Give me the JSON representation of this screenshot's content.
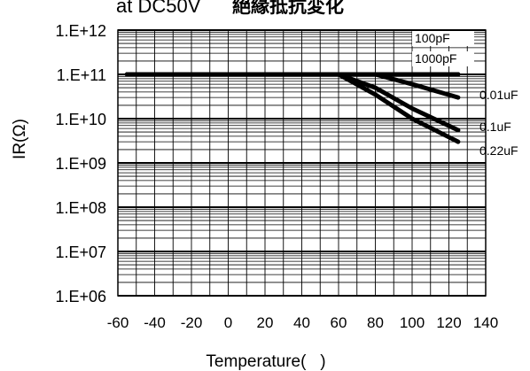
{
  "chart_data": {
    "type": "line",
    "title": "at DC50V",
    "subtitle": "絕緣抵抗変化",
    "xlabel": "Temperature(   )",
    "ylabel": "IR(Ω)",
    "xlim": [
      -60,
      140
    ],
    "ylim_log10": [
      6,
      12
    ],
    "x_ticks": [
      -60,
      -40,
      -20,
      0,
      20,
      40,
      60,
      80,
      100,
      120,
      140
    ],
    "x_tick_labels": [
      "-60",
      "-40",
      "-20",
      "0",
      "20",
      "40",
      "60",
      "80",
      "100",
      "120",
      "140"
    ],
    "y_tick_labels": [
      "1.E+12",
      "1.E+11",
      "1.E+10",
      "1.E+09",
      "1.E+08",
      "1.E+07",
      "1.E+06"
    ],
    "y_scale": "log",
    "grid": true,
    "series": [
      {
        "name": "100pF",
        "x": [
          -55,
          60,
          80,
          125
        ],
        "y": [
          100000000000.0,
          100000000000.0,
          100000000000.0,
          100000000000.0
        ]
      },
      {
        "name": "1000pF",
        "x": [
          -55,
          60,
          80,
          125
        ],
        "y": [
          100000000000.0,
          100000000000.0,
          100000000000.0,
          100000000000.0
        ]
      },
      {
        "name": "0.01uF",
        "x": [
          -55,
          60,
          80,
          100,
          125
        ],
        "y": [
          100000000000.0,
          100000000000.0,
          100000000000.0,
          60000000000.0,
          30000000000.0
        ]
      },
      {
        "name": "0.1uF",
        "x": [
          -55,
          60,
          80,
          100,
          125
        ],
        "y": [
          100000000000.0,
          100000000000.0,
          50000000000.0,
          17000000000.0,
          5500000000.0
        ]
      },
      {
        "name": "0.22uF",
        "x": [
          -55,
          60,
          80,
          100,
          125
        ],
        "y": [
          100000000000.0,
          100000000000.0,
          35000000000.0,
          10000000000.0,
          3000000000.0
        ]
      }
    ]
  }
}
